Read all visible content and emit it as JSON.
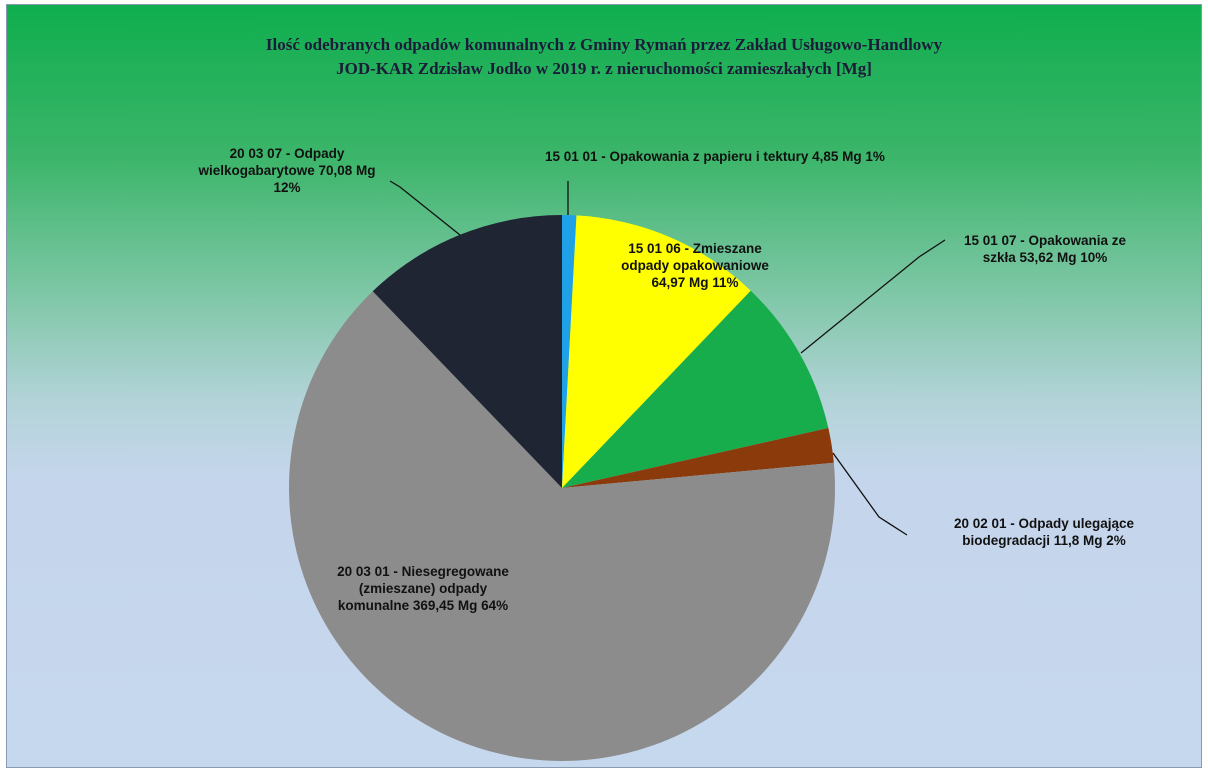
{
  "chart_data": {
    "type": "pie",
    "title": [
      "Ilość odebranych odpadów komunalnych z Gminy Rymań przez Zakład Usługowo-Handlowy",
      "JOD-KAR Zdzisław Jodko w 2019 r. z nieruchomości zamieszkałych [Mg]"
    ],
    "unit": "Mg",
    "slices": [
      {
        "label": "15 01 01 - Opakowania z papieru i tektury",
        "value": 4.85,
        "value_text": "4,85 Mg",
        "percent": "1%",
        "color": "#1ea1e6"
      },
      {
        "label": "15 01 06 - Zmieszane odpady opakowaniowe",
        "value": 64.97,
        "value_text": "64,97 Mg",
        "percent": "11%",
        "color": "#ffff00"
      },
      {
        "label": "15 01 07 - Opakowania ze szkła",
        "value": 53.62,
        "value_text": "53,62 Mg",
        "percent": "10%",
        "color": "#18ad4c"
      },
      {
        "label": "20 02 01 - Odpady ulegające biodegradacji",
        "value": 11.8,
        "value_text": "11,8 Mg",
        "percent": "2%",
        "color": "#8b3a0c"
      },
      {
        "label": "20 03 01 - Niesegregowane (zmieszane) odpady komunalne",
        "value": 369.45,
        "value_text": "369,45 Mg",
        "percent": "64%",
        "color": "#8c8c8c"
      },
      {
        "label": "20 03 07 - Odpady wielkogabarytowe",
        "value": 70.08,
        "value_text": "70,08 Mg",
        "percent": "12%",
        "color": "#1f2533"
      }
    ],
    "label_lines": [
      [
        "15 01 01 - Opakowania z papieru i tektury  4,85 Mg 1%"
      ],
      [
        "15 01 06 - Zmieszane",
        "odpady opakowaniowe",
        "64,97 Mg 11%"
      ],
      [
        "15 01 07 - Opakowania ze",
        "szkła  53,62 Mg 10%"
      ],
      [
        "20 02 01 - Odpady ulegające",
        "biodegradacji  11,8 Mg 2%"
      ],
      [
        "20 03 01 - Niesegregowane",
        "(zmieszane) odpady",
        "komunalne  369,45 Mg 64%"
      ],
      [
        "20 03 07 - Odpady",
        "wielkogabarytowe  70,08 Mg",
        "12%"
      ]
    ],
    "legend": "none"
  }
}
